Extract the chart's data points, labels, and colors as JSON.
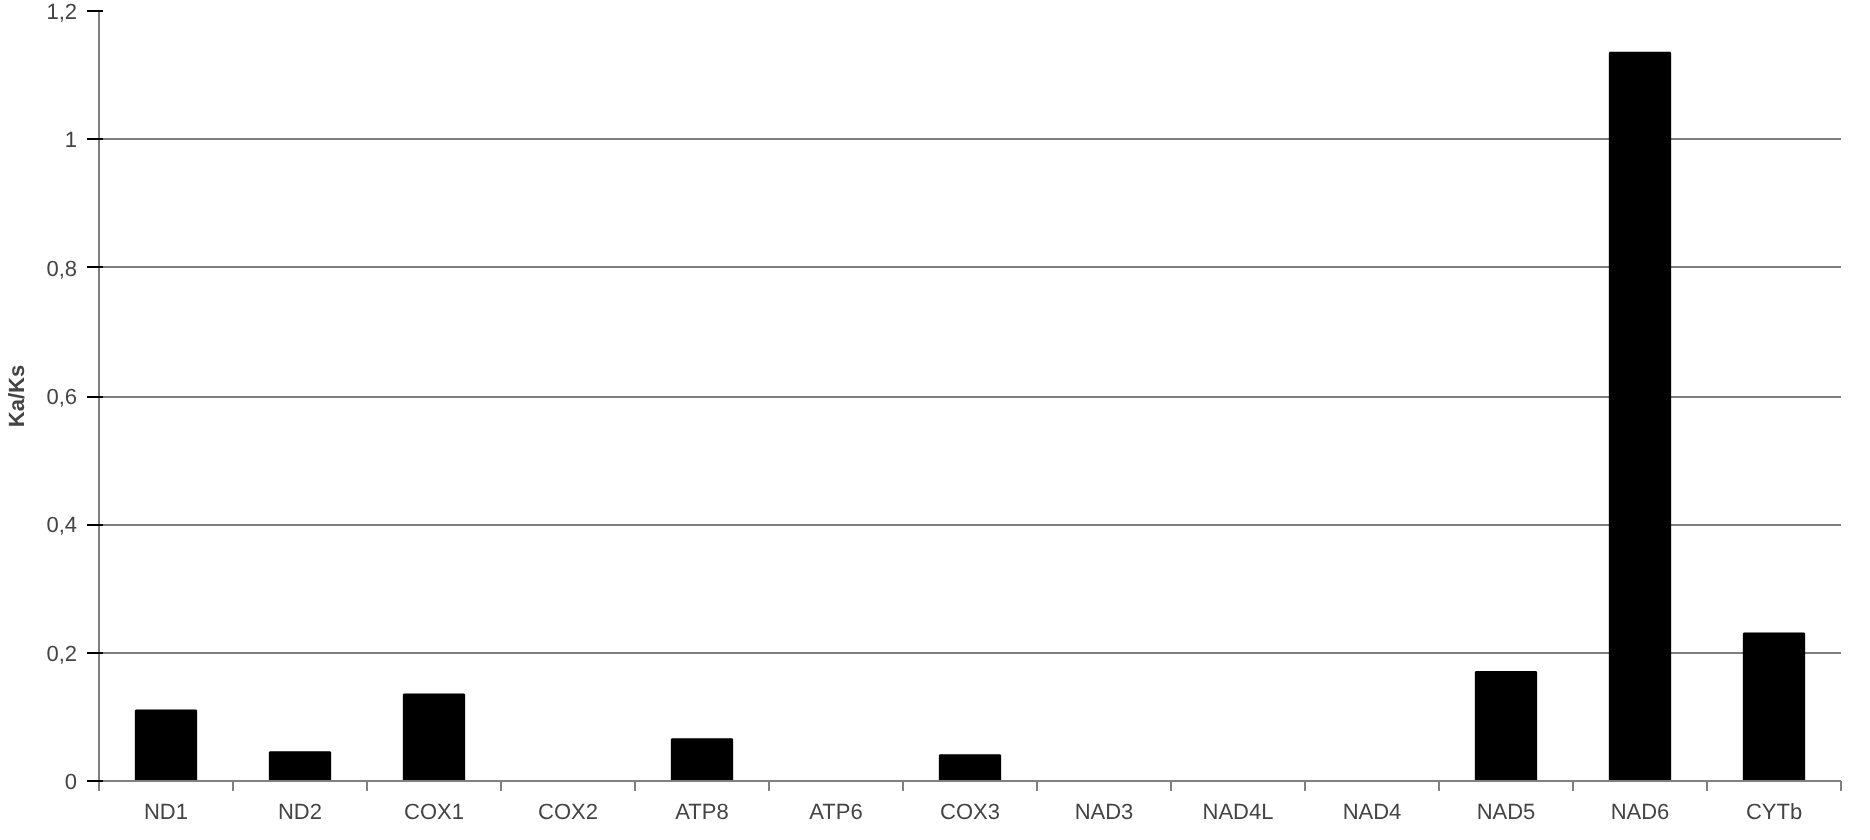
{
  "chart_data": {
    "type": "bar",
    "ylabel": "Ka/Ks",
    "categories": [
      "ND1",
      "ND2",
      "COX1",
      "COX2",
      "ATP8",
      "ATP6",
      "COX3",
      "NAD3",
      "NAD4L",
      "NAD4",
      "NAD5",
      "NAD6",
      "CYTb"
    ],
    "values": [
      0.11,
      0.045,
      0.135,
      0,
      0.065,
      0,
      0.04,
      0,
      0,
      0,
      0.17,
      1.135,
      0.23
    ],
    "color": "#000000",
    "ylim": [
      0,
      1.2
    ],
    "yticks": [
      0,
      {
        "value": 0.2,
        "label": "0,2"
      },
      {
        "value": 0.4,
        "label": "0,4"
      },
      {
        "value": 0.6,
        "label": "0,6"
      },
      {
        "value": 0.8,
        "label": "0,8"
      },
      1,
      {
        "value": 1.2,
        "label": "1,2"
      }
    ],
    "grid": "y"
  }
}
